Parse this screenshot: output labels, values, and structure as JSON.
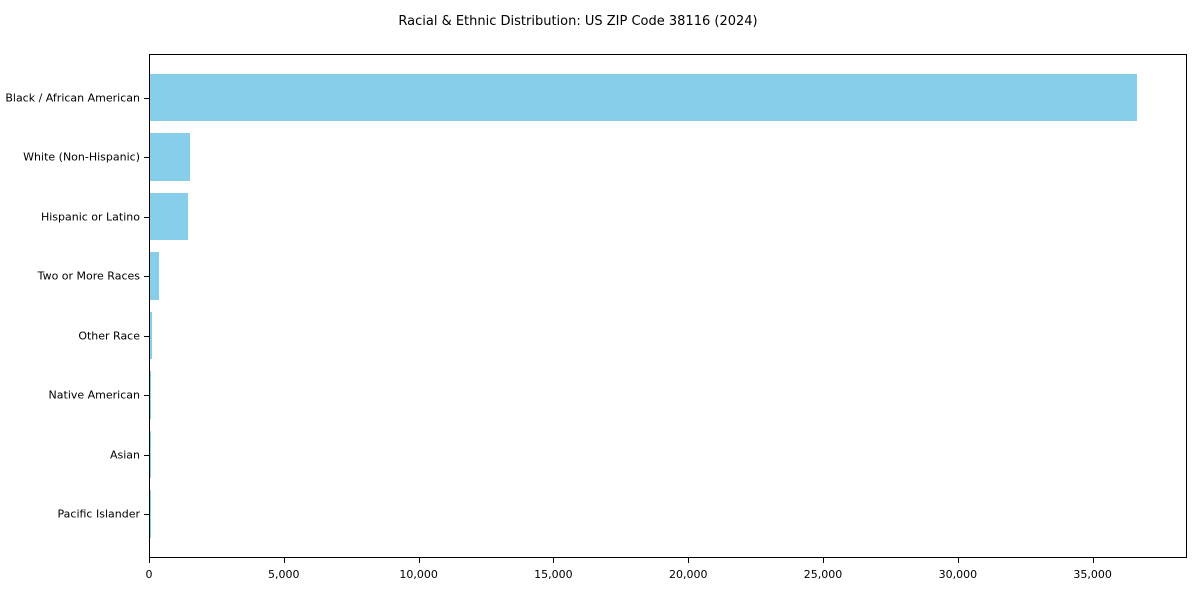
{
  "title": "Racial & Ethnic Distribution: US ZIP Code 38116 (2024)",
  "chart_data": {
    "type": "bar",
    "orientation": "horizontal",
    "title": "Racial & Ethnic Distribution: US ZIP Code 38116 (2024)",
    "categories": [
      "Black / African American",
      "White (Non-Hispanic)",
      "Hispanic or Latino",
      "Two or More Races",
      "Other Race",
      "Native American",
      "Asian",
      "Pacific Islander"
    ],
    "values": [
      36600,
      1500,
      1400,
      350,
      75,
      20,
      15,
      5
    ],
    "xlabel": "",
    "ylabel": "",
    "xlim": [
      0,
      38500
    ],
    "xticks": [
      0,
      5000,
      10000,
      15000,
      20000,
      25000,
      30000,
      35000
    ],
    "xtick_labels": [
      "0",
      "5,000",
      "10,000",
      "15,000",
      "20,000",
      "25,000",
      "30,000",
      "35,000"
    ],
    "bar_color": "#87CEEB",
    "grid": false,
    "legend_position": "none"
  }
}
